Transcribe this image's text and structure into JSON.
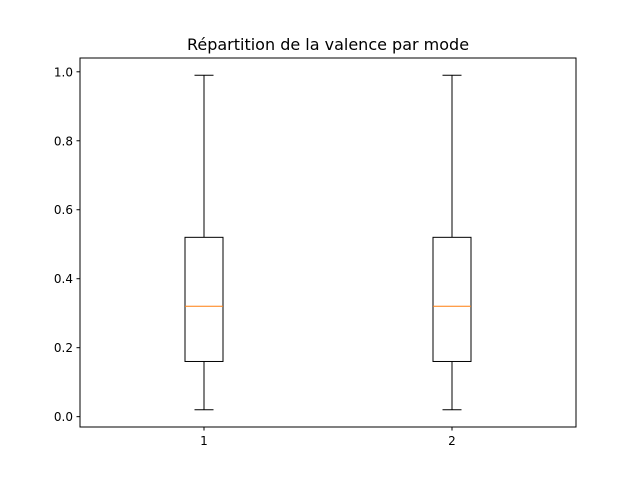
{
  "chart_data": {
    "type": "boxplot",
    "title": "Répartition de la valence par mode",
    "xlabel": "",
    "ylabel": "",
    "categories": [
      "1",
      "2"
    ],
    "boxes": [
      {
        "category": "1",
        "whisker_low": 0.02,
        "q1": 0.16,
        "median": 0.32,
        "q3": 0.52,
        "whisker_high": 0.99
      },
      {
        "category": "2",
        "whisker_low": 0.02,
        "q1": 0.16,
        "median": 0.32,
        "q3": 0.52,
        "whisker_high": 0.99
      }
    ],
    "ylim": [
      -0.03,
      1.04
    ],
    "yticks": [
      0.0,
      0.2,
      0.4,
      0.6,
      0.8,
      1.0
    ],
    "ytick_labels": [
      "0.0",
      "0.2",
      "0.4",
      "0.6",
      "0.8",
      "1.0"
    ],
    "grid": false,
    "colors": {
      "box": "#000000",
      "median": "#ff7f0e",
      "axes": "#000000",
      "background": "#ffffff"
    }
  }
}
